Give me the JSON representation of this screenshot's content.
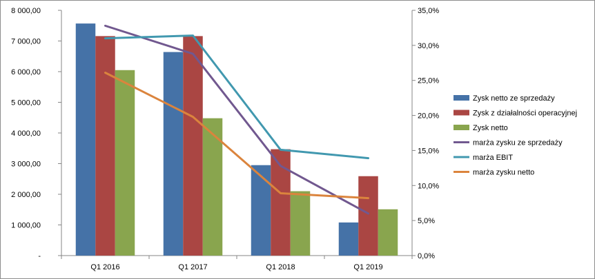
{
  "chart_data": {
    "type": "bar",
    "categories": [
      "Q1 2016",
      "Q1 2017",
      "Q1 2018",
      "Q1 2019"
    ],
    "series": [
      {
        "name": "Zysk netto ze sprzedaży",
        "kind": "bar",
        "axis": "left",
        "color": "#4572a7",
        "values": [
          7570,
          6640,
          2950,
          1080
        ]
      },
      {
        "name": "Zysk z działalności operacyjnej",
        "kind": "bar",
        "axis": "left",
        "color": "#aa4643",
        "values": [
          7160,
          7160,
          3470,
          2590
        ]
      },
      {
        "name": "Zysk netto",
        "kind": "bar",
        "axis": "left",
        "color": "#89a54e",
        "values": [
          6050,
          4480,
          2100,
          1510
        ]
      },
      {
        "name": "marża zysku ze sprzedaży",
        "kind": "line",
        "axis": "right",
        "color": "#71588f",
        "values": [
          32.8,
          28.8,
          12.8,
          6.0
        ]
      },
      {
        "name": "marża EBIT",
        "kind": "line",
        "axis": "right",
        "color": "#4198af",
        "values": [
          31.0,
          31.4,
          15.1,
          13.9
        ]
      },
      {
        "name": "marża zysku netto",
        "kind": "line",
        "axis": "right",
        "color": "#db843d",
        "values": [
          26.1,
          19.8,
          8.9,
          8.2
        ]
      }
    ],
    "y_left": {
      "lim": [
        0,
        8000
      ],
      "ticks": [
        0,
        1000,
        2000,
        3000,
        4000,
        5000,
        6000,
        7000,
        8000
      ],
      "tick_labels": [
        "-",
        "1 000,00",
        "2 000,00",
        "3 000,00",
        "4 000,00",
        "5 000,00",
        "6 000,00",
        "7 000,00",
        "8 000,00"
      ]
    },
    "y_right": {
      "lim": [
        0,
        35
      ],
      "ticks": [
        0,
        5,
        10,
        15,
        20,
        25,
        30,
        35
      ],
      "tick_labels": [
        "0,0%",
        "5,0%",
        "10,0%",
        "15,0%",
        "20,0%",
        "25,0%",
        "30,0%",
        "35,0%"
      ]
    },
    "grid": false,
    "legend_position": "right"
  }
}
